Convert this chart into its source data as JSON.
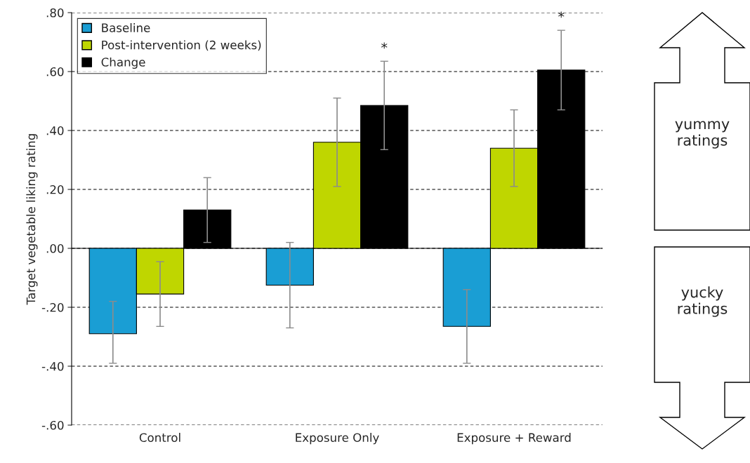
{
  "chart_data": {
    "type": "bar",
    "ylabel": "Target vegetable liking rating",
    "categories": [
      "Control",
      "Exposure Only",
      "Exposure + Reward"
    ],
    "series": [
      {
        "name": "Baseline",
        "color": "#1a9ed4",
        "values": [
          -0.29,
          -0.125,
          -0.265
        ],
        "errors": [
          [
            -0.39,
            -0.18
          ],
          [
            -0.27,
            0.02
          ],
          [
            -0.39,
            -0.14
          ]
        ]
      },
      {
        "name": "Post-intervention (2 weeks)",
        "color": "#bfd600",
        "values": [
          -0.155,
          0.36,
          0.34
        ],
        "errors": [
          [
            -0.265,
            -0.045
          ],
          [
            0.21,
            0.51
          ],
          [
            0.21,
            0.47
          ]
        ]
      },
      {
        "name": "Change",
        "color": "#000000",
        "values": [
          0.13,
          0.485,
          0.605
        ],
        "errors": [
          [
            0.02,
            0.24
          ],
          [
            0.335,
            0.635
          ],
          [
            0.47,
            0.74
          ]
        ]
      }
    ],
    "ylim": [
      -0.6,
      0.8
    ],
    "yticks": [
      {
        "value": -0.6,
        "label": "-.60"
      },
      {
        "value": -0.4,
        "label": "-.40"
      },
      {
        "value": -0.2,
        "label": "-.20"
      },
      {
        "value": 0,
        "label": ".00"
      },
      {
        "value": 0.2,
        "label": ".20"
      },
      {
        "value": 0.4,
        "label": ".40"
      },
      {
        "value": 0.6,
        "label": ".60"
      },
      {
        "value": 0.8,
        "label": ".80"
      }
    ],
    "grid": "y",
    "legend": "top left",
    "annotations": [
      "*",
      "*",
      "yummy ratings",
      "yucky ratings"
    ]
  }
}
